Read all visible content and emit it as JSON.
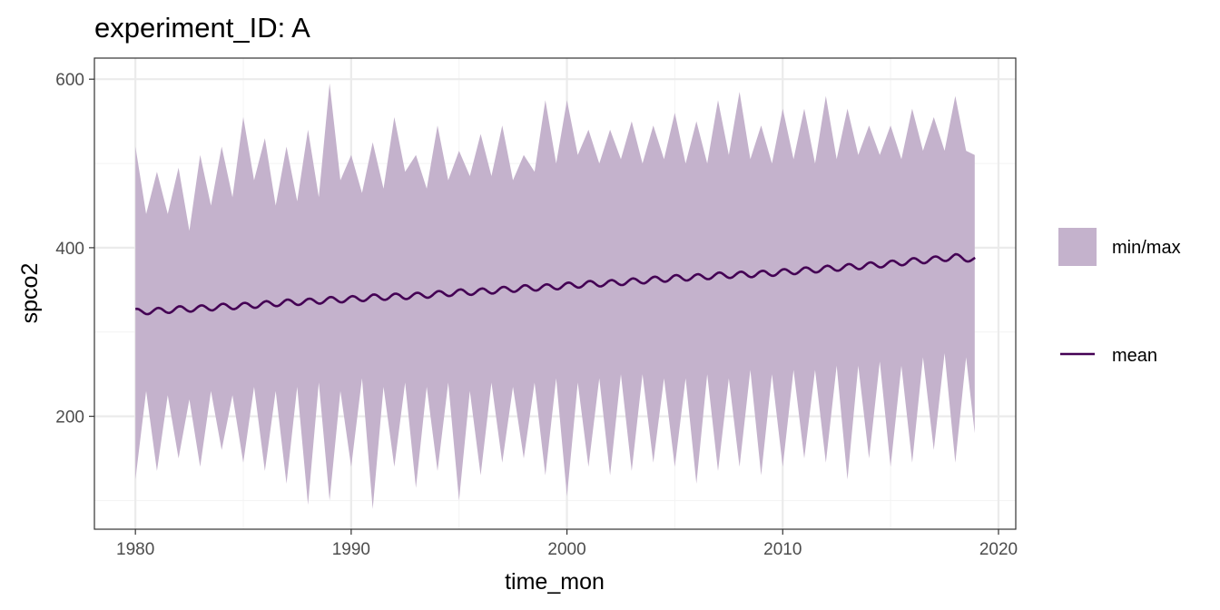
{
  "chart_data": {
    "type": "area",
    "title": "experiment_ID: A",
    "xlabel": "time_mon",
    "ylabel": "spco2",
    "xlim": [
      1978.1,
      2020.8
    ],
    "ylim": [
      66,
      625
    ],
    "x_ticks": [
      1980,
      1990,
      2000,
      2010,
      2020
    ],
    "x_tick_labels": [
      "1980",
      "1990",
      "2000",
      "2010",
      "2020"
    ],
    "y_ticks": [
      200,
      400,
      600
    ],
    "y_tick_labels": [
      "200",
      "400",
      "600"
    ],
    "grid": true,
    "legend_position": "right",
    "colors": {
      "ribbon": "#c4b2cc",
      "mean": "#440154",
      "grid_major": "#ebebeb",
      "grid_minor": "#f4f4f4",
      "panel_border": "#333333"
    },
    "series": [
      {
        "name": "min/max",
        "kind": "ribbon",
        "x": [
          1980.0,
          1980.5,
          1981.0,
          1981.5,
          1982.0,
          1982.5,
          1983.0,
          1983.5,
          1984.0,
          1984.5,
          1985.0,
          1985.5,
          1986.0,
          1986.5,
          1987.0,
          1987.5,
          1988.0,
          1988.5,
          1989.0,
          1989.5,
          1990.0,
          1990.5,
          1991.0,
          1991.5,
          1992.0,
          1992.5,
          1993.0,
          1993.5,
          1994.0,
          1994.5,
          1995.0,
          1995.5,
          1996.0,
          1996.5,
          1997.0,
          1997.5,
          1998.0,
          1998.5,
          1999.0,
          1999.5,
          2000.0,
          2000.5,
          2001.0,
          2001.5,
          2002.0,
          2002.5,
          2003.0,
          2003.5,
          2004.0,
          2004.5,
          2005.0,
          2005.5,
          2006.0,
          2006.5,
          2007.0,
          2007.5,
          2008.0,
          2008.5,
          2009.0,
          2009.5,
          2010.0,
          2010.5,
          2011.0,
          2011.5,
          2012.0,
          2012.5,
          2013.0,
          2013.5,
          2014.0,
          2014.5,
          2015.0,
          2015.5,
          2016.0,
          2016.5,
          2017.0,
          2017.5,
          2018.0,
          2018.5,
          2018.9
        ],
        "ymin": [
          125,
          230,
          135,
          225,
          150,
          220,
          140,
          230,
          160,
          225,
          145,
          235,
          135,
          230,
          120,
          235,
          95,
          240,
          100,
          230,
          140,
          245,
          90,
          235,
          140,
          240,
          115,
          235,
          135,
          240,
          100,
          230,
          130,
          240,
          145,
          235,
          150,
          240,
          130,
          245,
          105,
          240,
          140,
          245,
          130,
          250,
          135,
          250,
          145,
          245,
          140,
          245,
          120,
          250,
          135,
          245,
          140,
          255,
          130,
          250,
          140,
          255,
          150,
          255,
          145,
          260,
          125,
          260,
          150,
          265,
          140,
          260,
          145,
          270,
          160,
          275,
          145,
          270,
          180
        ],
        "ymax": [
          520,
          440,
          490,
          440,
          495,
          420,
          510,
          450,
          520,
          460,
          555,
          480,
          530,
          450,
          520,
          455,
          540,
          460,
          595,
          480,
          510,
          465,
          525,
          470,
          555,
          490,
          510,
          470,
          545,
          480,
          515,
          485,
          535,
          485,
          545,
          480,
          510,
          490,
          575,
          500,
          575,
          510,
          540,
          500,
          540,
          505,
          550,
          500,
          545,
          505,
          560,
          500,
          550,
          500,
          575,
          510,
          585,
          505,
          545,
          500,
          565,
          505,
          565,
          500,
          580,
          505,
          565,
          510,
          545,
          510,
          545,
          505,
          565,
          515,
          555,
          515,
          580,
          515,
          510
        ]
      },
      {
        "name": "mean",
        "kind": "line",
        "x": [
          1980.0,
          1981.0,
          1982.0,
          1983.0,
          1984.0,
          1985.0,
          1986.0,
          1987.0,
          1988.0,
          1989.0,
          1990.0,
          1991.0,
          1992.0,
          1993.0,
          1994.0,
          1995.0,
          1996.0,
          1997.0,
          1998.0,
          1999.0,
          2000.0,
          2001.0,
          2002.0,
          2003.0,
          2004.0,
          2005.0,
          2006.0,
          2007.0,
          2008.0,
          2009.0,
          2010.0,
          2011.0,
          2012.0,
          2013.0,
          2014.0,
          2015.0,
          2016.0,
          2017.0,
          2018.0,
          2018.9
        ],
        "y": [
          324,
          325,
          327,
          328,
          330,
          331,
          333,
          335,
          336,
          338,
          339,
          341,
          342,
          343,
          345,
          347,
          348,
          350,
          352,
          353,
          355,
          357,
          358,
          360,
          362,
          364,
          365,
          367,
          368,
          369,
          371,
          373,
          375,
          377,
          379,
          381,
          384,
          386,
          389,
          386
        ],
        "seasonal_amplitude": 3.5
      }
    ]
  }
}
